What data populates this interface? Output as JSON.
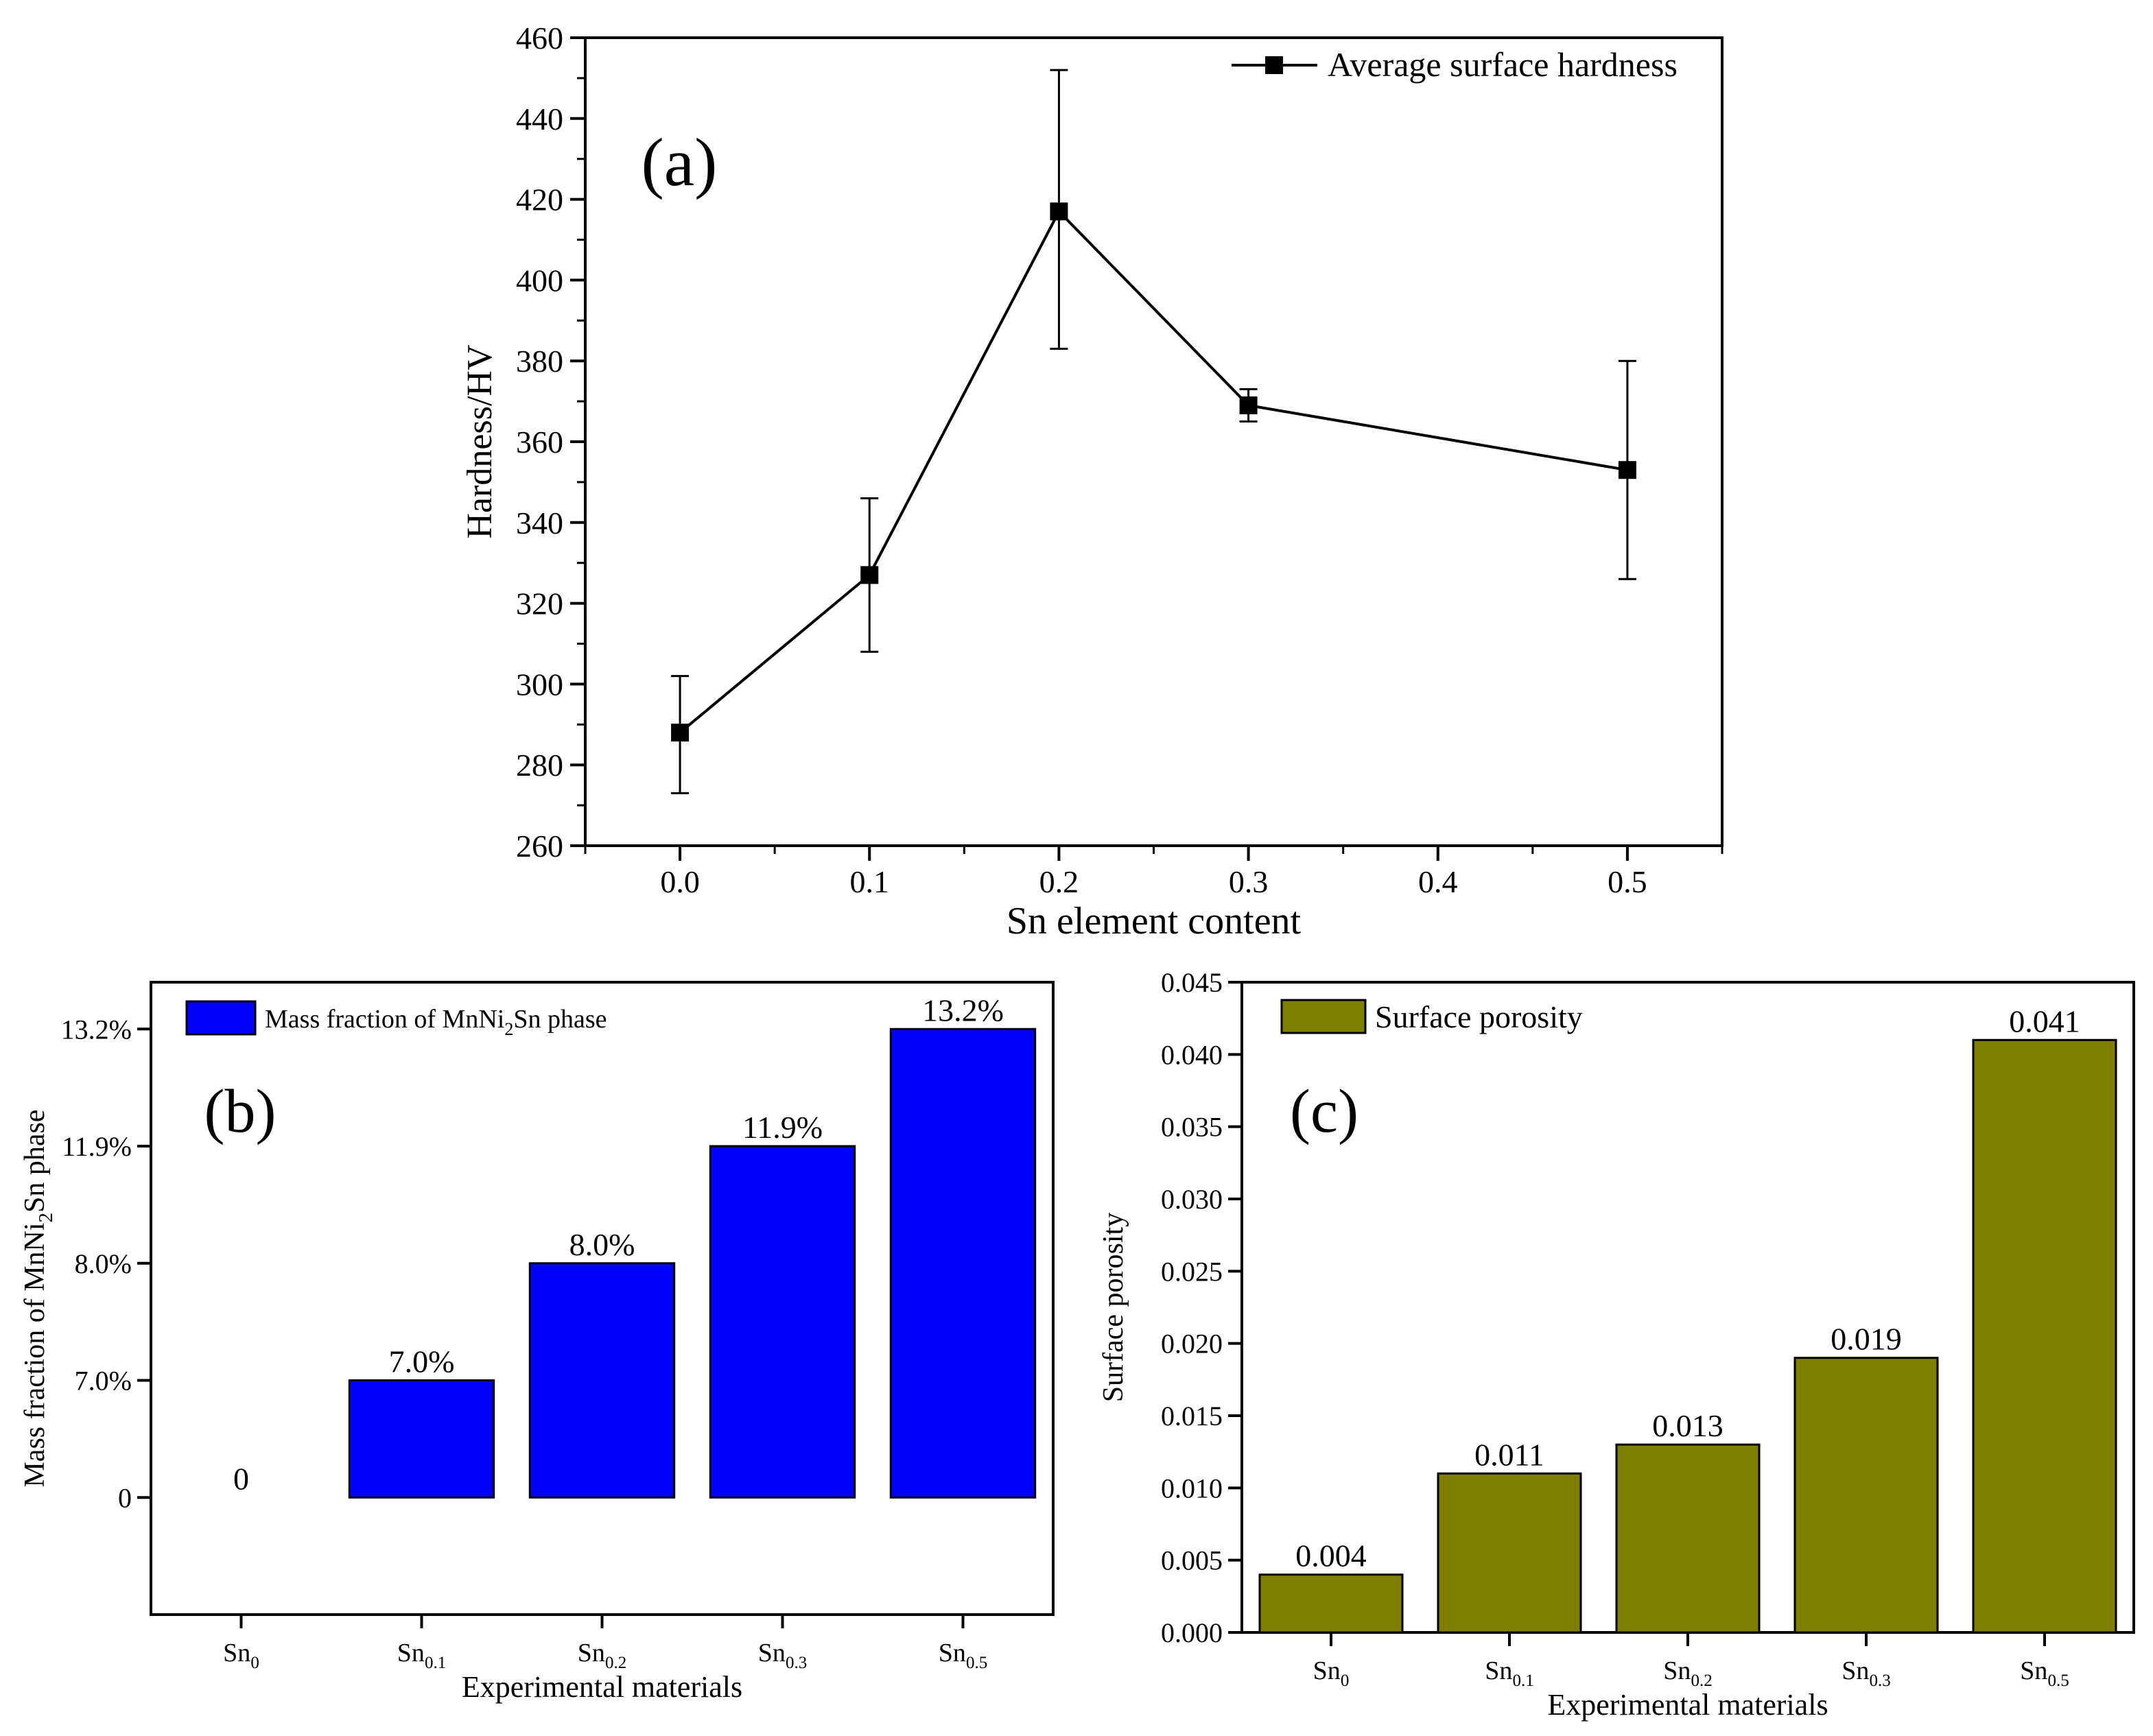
{
  "chart_data": [
    {
      "id": "a",
      "type": "line",
      "panel_label": "(a)",
      "xlabel": "Sn element content",
      "ylabel": "Hardness/HV",
      "xlim": [
        -0.05,
        0.55
      ],
      "ylim": [
        260,
        460
      ],
      "x_ticks": [
        0.0,
        0.1,
        0.2,
        0.3,
        0.4,
        0.5
      ],
      "x_tick_labels": [
        "0.0",
        "0.1",
        "0.2",
        "0.3",
        "0.4",
        "0.5"
      ],
      "y_ticks": [
        260,
        280,
        300,
        320,
        340,
        360,
        380,
        400,
        420,
        440,
        460
      ],
      "legend": {
        "position": "top-right"
      },
      "series": [
        {
          "name": "Average surface hardness",
          "color": "#000000",
          "marker": "square",
          "x": [
            0.0,
            0.1,
            0.2,
            0.3,
            0.5
          ],
          "y": [
            288,
            327,
            417,
            369,
            353
          ],
          "err_low": [
            273,
            308,
            383,
            365,
            326
          ],
          "err_high": [
            302,
            346,
            452,
            373,
            380
          ]
        }
      ]
    },
    {
      "id": "b",
      "type": "bar",
      "panel_label": "(b)",
      "xlabel": "Experimental materials",
      "ylabel": {
        "main": "Mass fraction of MnNi",
        "sub": "2",
        "rest": "Sn phase"
      },
      "category_base": "Sn",
      "category_subs": [
        "0",
        "0.1",
        "0.2",
        "0.3",
        "0.5"
      ],
      "y_tick_labels": [
        "0",
        "7.0%",
        "8.0%",
        "11.9%",
        "13.2%"
      ],
      "values": [
        0,
        1,
        2,
        3,
        4
      ],
      "value_labels": [
        "0",
        "7.0%",
        "8.0%",
        "11.9%",
        "13.2%"
      ],
      "ylim": [
        -1,
        4.4
      ],
      "legend": {
        "position": "top-left",
        "label": {
          "main": "Mass fraction of MnNi",
          "sub": "2",
          "rest": "Sn phase"
        }
      },
      "color": "#0000ff"
    },
    {
      "id": "c",
      "type": "bar",
      "panel_label": "(c)",
      "xlabel": "Experimental materials",
      "ylabel": "Surface porosity",
      "category_base": "Sn",
      "category_subs": [
        "0",
        "0.1",
        "0.2",
        "0.3",
        "0.5"
      ],
      "values": [
        0.004,
        0.011,
        0.013,
        0.019,
        0.041
      ],
      "value_labels": [
        "0.004",
        "0.011",
        "0.013",
        "0.019",
        "0.041"
      ],
      "ylim": [
        0,
        0.045
      ],
      "y_ticks": [
        0,
        0.005,
        0.01,
        0.015,
        0.02,
        0.025,
        0.03,
        0.035,
        0.04,
        0.045
      ],
      "y_tick_labels": [
        "0.000",
        "0.005",
        "0.010",
        "0.015",
        "0.020",
        "0.025",
        "0.030",
        "0.035",
        "0.040",
        "0.045"
      ],
      "legend": {
        "position": "top-left",
        "label": "Surface porosity"
      },
      "color": "#808000"
    }
  ]
}
